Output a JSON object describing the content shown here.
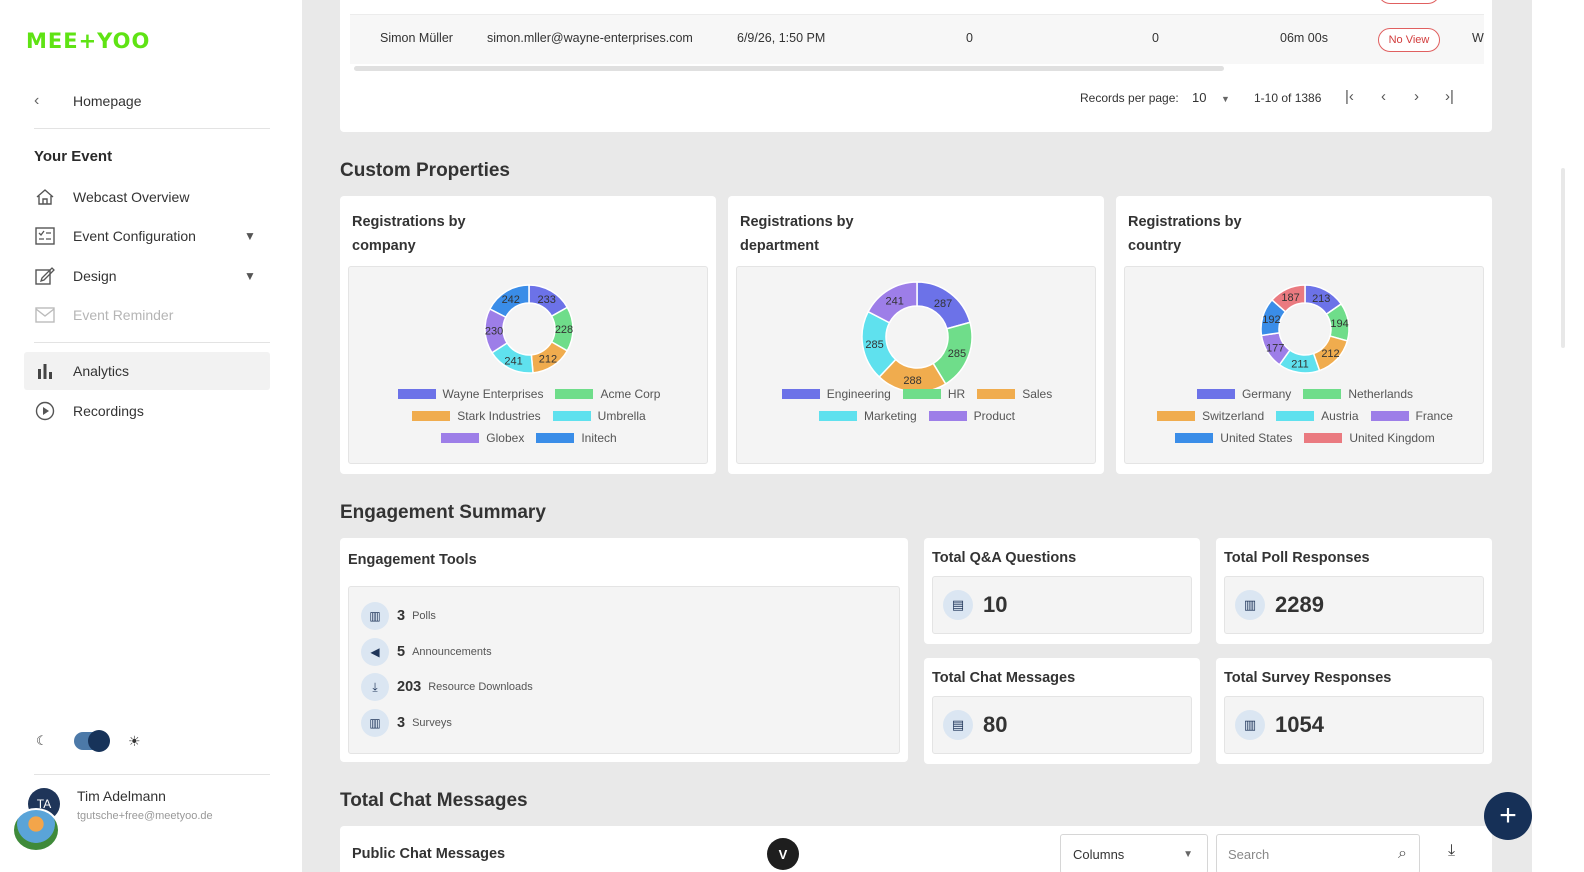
{
  "sidebar": {
    "logo": "MEE+YOO",
    "back_label": "Homepage",
    "section_title": "Your Event",
    "items": [
      {
        "label": "Webcast Overview",
        "icon": "home-icon"
      },
      {
        "label": "Event Configuration",
        "icon": "checklist-icon"
      },
      {
        "label": "Design",
        "icon": "edit-icon"
      },
      {
        "label": "Event Reminder",
        "icon": "mail-icon"
      },
      {
        "label": "Analytics",
        "icon": "bar-chart-icon"
      },
      {
        "label": "Recordings",
        "icon": "play-circle-icon"
      }
    ],
    "user": {
      "initials": "TA",
      "name": "Tim Adelmann",
      "email": "tgutsche+free@meetyoo.de"
    }
  },
  "table": {
    "row": {
      "name": "Simon Müller",
      "email": "simon.mller@wayne-enterprises.com",
      "date": "6/9/26, 1:50 PM",
      "col4": "0",
      "col5": "0",
      "duration": "06m 00s",
      "status": "No View",
      "overflow": "W"
    },
    "records_label": "Records per page:",
    "records_value": "10",
    "range": "1-10 of 1386"
  },
  "sections": {
    "custom_properties": "Custom Properties",
    "engagement_summary": "Engagement Summary",
    "total_chat": "Total Chat Messages"
  },
  "chart_data": [
    {
      "type": "pie",
      "title": "Registrations by company",
      "categories": [
        "Wayne Enterprises",
        "Acme Corp",
        "Stark Industries",
        "Umbrella",
        "Globex",
        "Initech"
      ],
      "values": [
        233,
        228,
        212,
        241,
        230,
        242
      ],
      "colors": [
        "#6c72e8",
        "#6fdd8a",
        "#f0ac4e",
        "#5fe1ee",
        "#9d7ee8",
        "#3a8de8"
      ],
      "legend": "bottom"
    },
    {
      "type": "pie",
      "title": "Registrations by department",
      "categories": [
        "Engineering",
        "HR",
        "Sales",
        "Marketing",
        "Product"
      ],
      "values": [
        287,
        285,
        288,
        285,
        241
      ],
      "colors": [
        "#6c72e8",
        "#6fdd8a",
        "#f0ac4e",
        "#5fe1ee",
        "#9d7ee8"
      ],
      "legend": "bottom"
    },
    {
      "type": "pie",
      "title": "Registrations by country",
      "categories": [
        "Germany",
        "Netherlands",
        "Switzerland",
        "Austria",
        "France",
        "United States",
        "United Kingdom"
      ],
      "values": [
        213,
        194,
        212,
        211,
        177,
        192,
        187
      ],
      "colors": [
        "#6c72e8",
        "#6fdd8a",
        "#f0ac4e",
        "#5fe1ee",
        "#9d7ee8",
        "#3a8de8",
        "#ea7a80"
      ],
      "legend": "bottom"
    }
  ],
  "engagement": {
    "title": "Engagement Tools",
    "tools": [
      {
        "count": "3",
        "label": "Polls",
        "icon": "poll-icon"
      },
      {
        "count": "5",
        "label": "Announcements",
        "icon": "megaphone-icon"
      },
      {
        "count": "203",
        "label": "Resource Downloads",
        "icon": "download-icon"
      },
      {
        "count": "3",
        "label": "Surveys",
        "icon": "survey-icon"
      }
    ],
    "stats": [
      {
        "title": "Total Q&A Questions",
        "value": "10",
        "icon": "question-icon"
      },
      {
        "title": "Total Poll Responses",
        "value": "2289",
        "icon": "poll-icon"
      },
      {
        "title": "Total Chat Messages",
        "value": "80",
        "icon": "chat-icon"
      },
      {
        "title": "Total Survey Responses",
        "value": "1054",
        "icon": "survey-icon"
      }
    ]
  },
  "chat": {
    "title": "Public Chat Messages",
    "columns_label": "Columns",
    "search_placeholder": "Search"
  },
  "misc": {
    "v_badge": "V",
    "fab": "+"
  }
}
